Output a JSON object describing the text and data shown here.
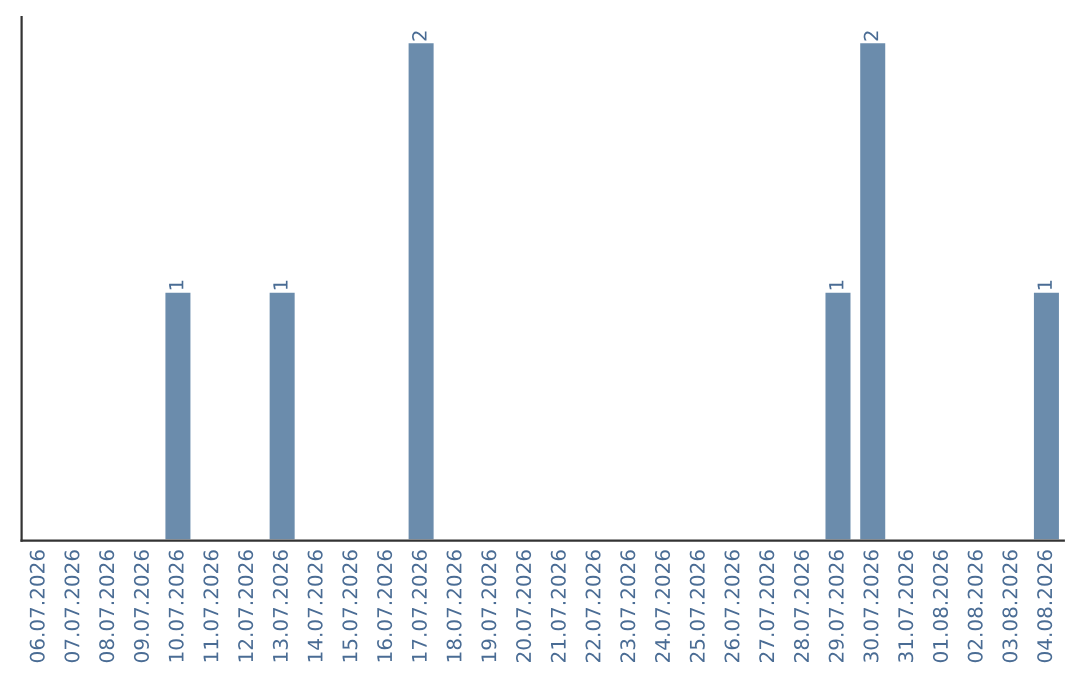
{
  "chart_data": {
    "type": "bar",
    "categories": [
      "06.07.2026",
      "07.07.2026",
      "08.07.2026",
      "09.07.2026",
      "10.07.2026",
      "11.07.2026",
      "12.07.2026",
      "13.07.2026",
      "14.07.2026",
      "15.07.2026",
      "16.07.2026",
      "17.07.2026",
      "18.07.2026",
      "19.07.2026",
      "20.07.2026",
      "21.07.2026",
      "22.07.2026",
      "23.07.2026",
      "24.07.2026",
      "25.07.2026",
      "26.07.2026",
      "27.07.2026",
      "28.07.2026",
      "29.07.2026",
      "30.07.2026",
      "31.07.2026",
      "01.08.2026",
      "02.08.2026",
      "03.08.2026",
      "04.08.2026"
    ],
    "values": [
      null,
      null,
      null,
      null,
      1,
      null,
      null,
      1,
      null,
      null,
      null,
      2,
      null,
      null,
      null,
      null,
      null,
      null,
      null,
      null,
      null,
      null,
      null,
      1,
      2,
      null,
      null,
      null,
      null,
      1
    ],
    "value_labels": [
      null,
      null,
      null,
      null,
      "1",
      null,
      null,
      "1",
      null,
      null,
      null,
      "2",
      null,
      null,
      null,
      null,
      null,
      null,
      null,
      null,
      null,
      null,
      null,
      "1",
      "2",
      null,
      null,
      null,
      null,
      "1"
    ],
    "color": "#6b8cac",
    "ylim": [
      0,
      2.1
    ],
    "tick_labels": "x",
    "grid": false
  }
}
